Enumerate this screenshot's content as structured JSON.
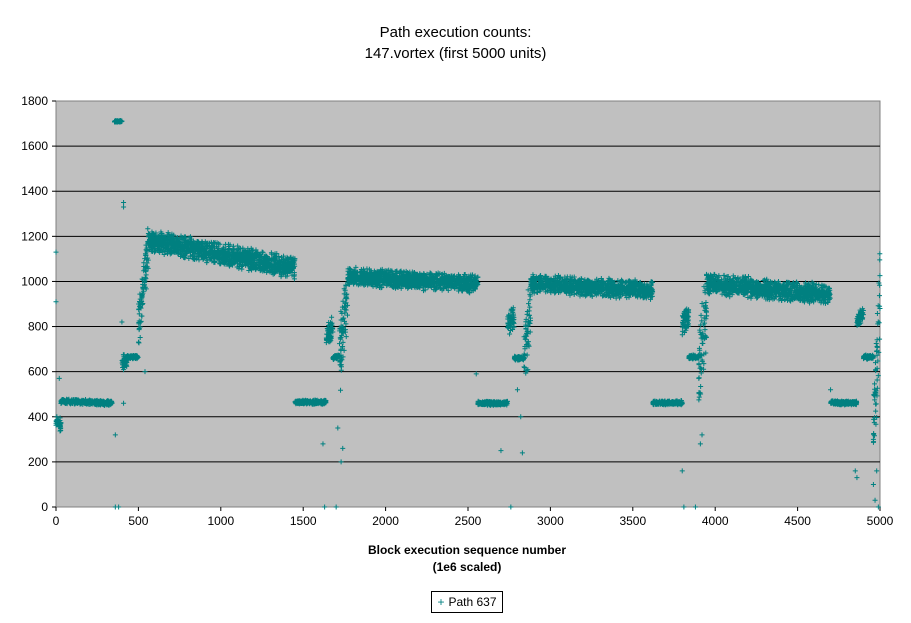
{
  "title_line1": "Path execution counts:",
  "title_line2": "147.vortex (first 5000 units)",
  "chart_data": {
    "type": "scatter",
    "title": "Path execution counts: 147.vortex (first 5000 units)",
    "xlabel_line1": "Block execution sequence number",
    "xlabel_line2": "(1e6 scaled)",
    "ylabel": "",
    "xlim": [
      0,
      5000
    ],
    "ylim": [
      0,
      1800
    ],
    "xticks": [
      0,
      500,
      1000,
      1500,
      2000,
      2500,
      3000,
      3500,
      4000,
      4500,
      5000
    ],
    "yticks": [
      0,
      200,
      400,
      600,
      800,
      1000,
      1200,
      1400,
      1600,
      1800
    ],
    "grid": "horizontal",
    "plot_background": "#c0c0c0",
    "legend_position": "bottom-center",
    "series": [
      {
        "name": "Path 637",
        "color": "#008080",
        "marker": "+",
        "segments": [
          {
            "x0": 0,
            "x1": 30,
            "y0": 380,
            "y1": 360,
            "spread": 40
          },
          {
            "x0": 30,
            "x1": 340,
            "y0": 470,
            "y1": 460,
            "spread": 12
          },
          {
            "x0": 355,
            "x1": 400,
            "y0": 1710,
            "y1": 1710,
            "spread": 4
          },
          {
            "x0": 400,
            "x1": 430,
            "y0": 640,
            "y1": 650,
            "spread": 40
          },
          {
            "x0": 430,
            "x1": 500,
            "y0": 665,
            "y1": 665,
            "spread": 8
          },
          {
            "x0": 500,
            "x1": 560,
            "y0": 800,
            "y1": 1150,
            "spread": 120
          },
          {
            "x0": 560,
            "x1": 1450,
            "y0": 1180,
            "y1": 1060,
            "spread": 55
          },
          {
            "x0": 1450,
            "x1": 1640,
            "y0": 465,
            "y1": 465,
            "spread": 10
          },
          {
            "x0": 1640,
            "x1": 1680,
            "y0": 760,
            "y1": 790,
            "spread": 60
          },
          {
            "x0": 1680,
            "x1": 1720,
            "y0": 660,
            "y1": 670,
            "spread": 10
          },
          {
            "x0": 1720,
            "x1": 1770,
            "y0": 650,
            "y1": 950,
            "spread": 200
          },
          {
            "x0": 1770,
            "x1": 2560,
            "y0": 1020,
            "y1": 990,
            "spread": 45
          },
          {
            "x0": 2560,
            "x1": 2740,
            "y0": 460,
            "y1": 460,
            "spread": 10
          },
          {
            "x0": 2740,
            "x1": 2780,
            "y0": 810,
            "y1": 850,
            "spread": 60
          },
          {
            "x0": 2780,
            "x1": 2840,
            "y0": 660,
            "y1": 660,
            "spread": 10
          },
          {
            "x0": 2840,
            "x1": 2880,
            "y0": 650,
            "y1": 900,
            "spread": 200
          },
          {
            "x0": 2880,
            "x1": 3620,
            "y0": 990,
            "y1": 960,
            "spread": 45
          },
          {
            "x0": 3620,
            "x1": 3800,
            "y0": 462,
            "y1": 462,
            "spread": 10
          },
          {
            "x0": 3800,
            "x1": 3840,
            "y0": 810,
            "y1": 850,
            "spread": 60
          },
          {
            "x0": 3840,
            "x1": 3900,
            "y0": 665,
            "y1": 665,
            "spread": 10
          },
          {
            "x0": 3900,
            "x1": 3950,
            "y0": 600,
            "y1": 900,
            "spread": 200
          },
          {
            "x0": 3950,
            "x1": 4700,
            "y0": 990,
            "y1": 940,
            "spread": 50
          },
          {
            "x0": 4700,
            "x1": 4860,
            "y0": 462,
            "y1": 462,
            "spread": 10
          },
          {
            "x0": 4860,
            "x1": 4900,
            "y0": 830,
            "y1": 860,
            "spread": 40
          },
          {
            "x0": 4900,
            "x1": 4960,
            "y0": 665,
            "y1": 665,
            "spread": 10
          },
          {
            "x0": 4960,
            "x1": 5000,
            "y0": 300,
            "y1": 950,
            "spread": 250
          }
        ],
        "outliers": [
          [
            0,
            1130
          ],
          [
            0,
            910
          ],
          [
            20,
            570
          ],
          [
            360,
            0
          ],
          [
            360,
            320
          ],
          [
            380,
            0
          ],
          [
            410,
            1350
          ],
          [
            410,
            1330
          ],
          [
            400,
            820
          ],
          [
            410,
            460
          ],
          [
            540,
            600
          ],
          [
            1620,
            280
          ],
          [
            1630,
            0
          ],
          [
            1710,
            350
          ],
          [
            1730,
            200
          ],
          [
            1740,
            260
          ],
          [
            1700,
            0
          ],
          [
            2550,
            590
          ],
          [
            2700,
            250
          ],
          [
            2760,
            0
          ],
          [
            2820,
            400
          ],
          [
            2830,
            240
          ],
          [
            2800,
            520
          ],
          [
            3800,
            160
          ],
          [
            3810,
            0
          ],
          [
            3840,
            660
          ],
          [
            3880,
            0
          ],
          [
            3910,
            280
          ],
          [
            3920,
            320
          ],
          [
            4700,
            520
          ],
          [
            4850,
            160
          ],
          [
            4860,
            130
          ],
          [
            4960,
            100
          ],
          [
            4970,
            30
          ],
          [
            4990,
            0
          ],
          [
            4980,
            160
          ]
        ]
      }
    ]
  },
  "legend": {
    "label": "Path 637"
  }
}
